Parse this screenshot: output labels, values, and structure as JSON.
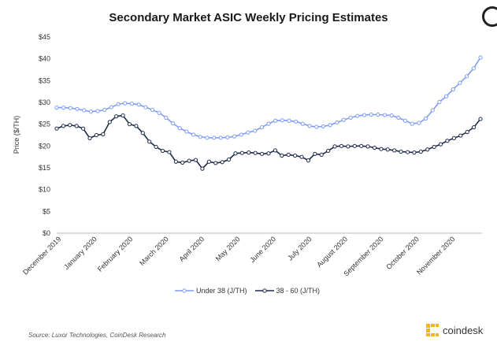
{
  "brand": "coindesk",
  "source": "Source: Luxor Technologies, CoinDesk Research",
  "chart_data": {
    "type": "line",
    "title": "Secondary Market ASIC Weekly Pricing Estimates",
    "xlabel": "",
    "ylabel": "Price ($/TH)",
    "ylim": [
      0,
      45
    ],
    "yticks": [
      "$0",
      "$5",
      "$10",
      "$15",
      "$20",
      "$25",
      "$30",
      "$35",
      "$40",
      "$45"
    ],
    "xticks": [
      "December 2019",
      "January 2020",
      "February 2020",
      "March 2020",
      "April 2020",
      "May 2020",
      "June 2020",
      "July 2020",
      "August 2020",
      "September 2020",
      "October 2020",
      "November 2020"
    ],
    "grid": false,
    "legend": "bottom",
    "series": [
      {
        "name": "Under 38 (J/TH)",
        "color": "#7f9cf5",
        "values": [
          28.8,
          28.8,
          28.7,
          28.5,
          28.2,
          27.9,
          28.0,
          28.3,
          28.9,
          29.6,
          29.8,
          29.7,
          29.5,
          28.9,
          28.3,
          27.6,
          26.5,
          25.2,
          24.1,
          23.3,
          22.6,
          22.1,
          21.9,
          21.9,
          21.9,
          22.0,
          22.2,
          22.6,
          23.1,
          23.5,
          24.3,
          25.1,
          25.8,
          25.9,
          25.8,
          25.6,
          25.1,
          24.6,
          24.4,
          24.5,
          24.8,
          25.4,
          26.0,
          26.5,
          26.9,
          27.1,
          27.2,
          27.2,
          27.1,
          27.0,
          26.5,
          25.8,
          25.1,
          25.3,
          26.3,
          28.2,
          30.1,
          31.4,
          33.0,
          34.5,
          36.0,
          37.8,
          40.3
        ]
      },
      {
        "name": "38 - 60 (J/TH)",
        "color": "#1c2a4a",
        "values": [
          24.0,
          24.6,
          24.8,
          24.6,
          24.0,
          21.8,
          22.5,
          22.7,
          25.5,
          26.8,
          27.0,
          25.0,
          24.6,
          23.0,
          21.0,
          19.8,
          18.9,
          18.6,
          16.4,
          16.2,
          16.6,
          16.8,
          14.8,
          16.4,
          16.1,
          16.3,
          16.9,
          18.3,
          18.4,
          18.5,
          18.4,
          18.2,
          18.3,
          19.0,
          17.8,
          18.0,
          17.8,
          17.5,
          16.7,
          18.2,
          18.0,
          18.9,
          19.9,
          20.0,
          19.9,
          20.0,
          20.0,
          19.9,
          19.6,
          19.3,
          19.2,
          19.0,
          18.7,
          18.6,
          18.5,
          18.7,
          19.2,
          19.8,
          20.4,
          21.2,
          21.8,
          22.4,
          23.2,
          24.3,
          26.2
        ]
      }
    ]
  }
}
